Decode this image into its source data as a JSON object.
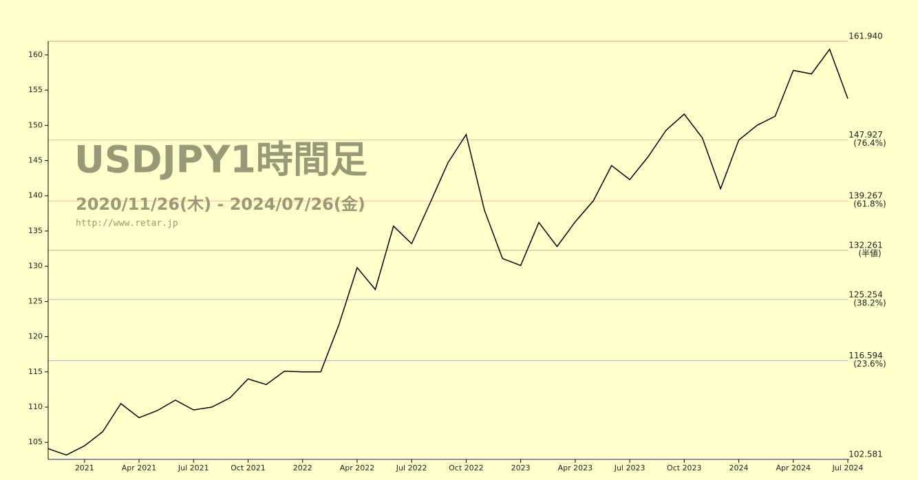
{
  "chart_data": {
    "type": "line",
    "title": "USDJPY1時間足",
    "subtitle": "2020/11/26(木) - 2024/07/26(金)",
    "source": "http://www.retar.jp",
    "x": [
      "2020-11",
      "2020-12",
      "2021-01",
      "2021-02",
      "2021-03",
      "2021-04",
      "2021-05",
      "2021-06",
      "2021-07",
      "2021-08",
      "2021-09",
      "2021-10",
      "2021-11",
      "2021-12",
      "2022-01",
      "2022-02",
      "2022-03",
      "2022-04",
      "2022-05",
      "2022-06",
      "2022-07",
      "2022-08",
      "2022-09",
      "2022-10",
      "2022-11",
      "2022-12",
      "2023-01",
      "2023-02",
      "2023-03",
      "2023-04",
      "2023-05",
      "2023-06",
      "2023-07",
      "2023-08",
      "2023-09",
      "2023-10",
      "2023-11",
      "2023-12",
      "2024-01",
      "2024-02",
      "2024-03",
      "2024-04",
      "2024-05",
      "2024-06",
      "2024-07"
    ],
    "values": [
      104.1,
      103.2,
      104.5,
      106.5,
      110.5,
      108.5,
      109.5,
      111.0,
      109.6,
      110.0,
      111.3,
      114.0,
      113.2,
      115.1,
      115.0,
      115.0,
      121.7,
      129.8,
      126.7,
      135.7,
      133.2,
      138.9,
      144.7,
      148.7,
      138.0,
      131.1,
      130.1,
      136.2,
      132.8,
      136.3,
      139.3,
      144.3,
      142.3,
      145.5,
      149.3,
      151.6,
      148.2,
      141.0,
      147.9,
      150.0,
      151.3,
      157.8,
      157.3,
      160.8,
      153.8
    ],
    "color": "#000000",
    "xlim": [
      "2020-11",
      "2024-07"
    ],
    "xticks": [
      {
        "value": "2021-01",
        "label": "2021"
      },
      {
        "value": "2021-04",
        "label": "Apr 2021"
      },
      {
        "value": "2021-07",
        "label": "Jul 2021"
      },
      {
        "value": "2021-10",
        "label": "Oct 2021"
      },
      {
        "value": "2022-01",
        "label": "2022"
      },
      {
        "value": "2022-04",
        "label": "Apr 2022"
      },
      {
        "value": "2022-07",
        "label": "Jul 2022"
      },
      {
        "value": "2022-10",
        "label": "Oct 2022"
      },
      {
        "value": "2023-01",
        "label": "2023"
      },
      {
        "value": "2023-04",
        "label": "Apr 2023"
      },
      {
        "value": "2023-07",
        "label": "Jul 2023"
      },
      {
        "value": "2023-10",
        "label": "Oct 2023"
      },
      {
        "value": "2024-01",
        "label": "2024"
      },
      {
        "value": "2024-04",
        "label": "Apr 2024"
      },
      {
        "value": "2024-07",
        "label": "Jul 2024"
      }
    ],
    "ylim": [
      102.581,
      161.94
    ],
    "yticks": [
      105,
      110,
      115,
      120,
      125,
      130,
      135,
      140,
      145,
      150,
      155,
      160
    ],
    "levels": [
      {
        "value": 161.94,
        "label": "161.940",
        "color": "#dd2222"
      },
      {
        "value": 147.927,
        "label": "147.927",
        "note": "(76.4%)",
        "color": "#e07860"
      },
      {
        "value": 139.267,
        "label": "139.267",
        "note": "(61.8%)",
        "color": "#e07860"
      },
      {
        "value": 132.261,
        "label": "132.261",
        "note": "(半値)",
        "color": "#a04020"
      },
      {
        "value": 125.254,
        "label": "125.254",
        "note": "(38.2%)",
        "color": "#4a7adc"
      },
      {
        "value": 116.594,
        "label": "116.594",
        "note": "(23.6%)",
        "color": "#3a5adc"
      },
      {
        "value": 102.581,
        "label": "102.581",
        "color": "#1010dd"
      }
    ]
  }
}
